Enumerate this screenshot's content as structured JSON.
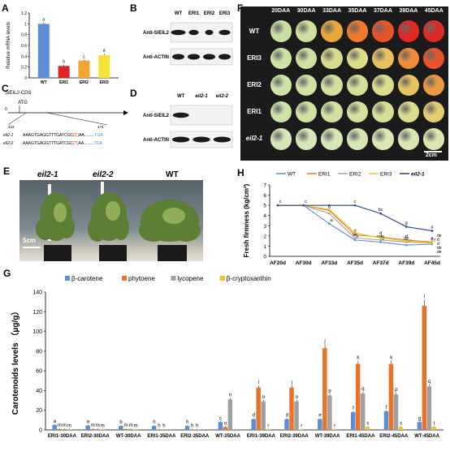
{
  "panels": {
    "A": {
      "letter": "A",
      "ylabel": "Relative mRNA levels",
      "categories": [
        "WT",
        "ERI1",
        "ERI2",
        "ERI3"
      ],
      "values": [
        1.0,
        0.22,
        0.32,
        0.42
      ],
      "errors": [
        0.03,
        0.03,
        0.02,
        0.03
      ],
      "letters": [
        "a",
        "b",
        "c",
        "d"
      ],
      "colors": [
        "#5b8fd6",
        "#e02424",
        "#f2a531",
        "#f5e23a"
      ],
      "yticks": [
        "0",
        "0.2",
        "0.4",
        "0.6",
        "0.8",
        "1",
        "1.2"
      ],
      "ylim": [
        0,
        1.2
      ]
    },
    "B": {
      "letter": "B",
      "lanes": [
        "WT",
        "ERI1",
        "ERI2",
        "ERI3"
      ],
      "row1": "Anti-SlEIL2",
      "row2": "Anti-ACTIN"
    },
    "C": {
      "letter": "C",
      "title": "SlEIL2-CDS",
      "atg": "ATG",
      "zero": "0",
      "pos1": "423",
      "pos2": "474",
      "rows": [
        {
          "name": "eil2-1",
          "seq": "AAAGTGAGGTTTGATCGC",
          "mut": "(C)",
          "tail": "AA.........",
          "stop": "TGA"
        },
        {
          "name": "eil2-2",
          "seq": "AAAGTGAGGTTTGATCGC",
          "mut": "(T)",
          "tail": "AA.........",
          "stop": "TGA"
        }
      ]
    },
    "D": {
      "letter": "D",
      "lanes": [
        "WT",
        "eil2-1",
        "eil2-2"
      ],
      "row1": "Anti-SlEIL2",
      "row2": "Anti-ACTIN"
    },
    "E": {
      "letter": "E",
      "labels": [
        "eil2-1",
        "eil2-2",
        "WT"
      ],
      "scale": "5cm"
    },
    "F": {
      "letter": "F",
      "columns": [
        "20DAA",
        "30DAA",
        "33DAA",
        "35DAA",
        "37DAA",
        "39DAA",
        "45DAA"
      ],
      "rows": [
        "WT",
        "ERI3",
        "ERI2",
        "ERI1",
        "eil2-1"
      ],
      "scale": "2cm",
      "colors": [
        [
          "#c8e0a4",
          "#cfe0a0",
          "#e9a63a",
          "#ec7a2a",
          "#e8542a",
          "#e02a26",
          "#dc2a26"
        ],
        [
          "#cde3a8",
          "#cfe2a4",
          "#d9dc8c",
          "#dcdb88",
          "#e8c260",
          "#ee8c3a",
          "#e8542a"
        ],
        [
          "#cde3a8",
          "#cfe2a4",
          "#d4e0a0",
          "#d6df98",
          "#dcdc8e",
          "#e6c262",
          "#ea9a40"
        ],
        [
          "#cde3a8",
          "#cfe2a4",
          "#d2e0a0",
          "#d4e09c",
          "#d7de96",
          "#dcdc8e",
          "#e4cc70"
        ],
        [
          "#d6e6b8",
          "#d6e6b8",
          "#d8e6b6",
          "#d8e6b6",
          "#dae6b4",
          "#dae6b2",
          "#dce6b0"
        ]
      ]
    },
    "H": {
      "letter": "H",
      "ylabel": "Fresh firmness (kg/cm²)",
      "categories": [
        "AF20d",
        "AF30d",
        "AF33d",
        "AF35d",
        "AF37d",
        "AF39d",
        "AF45d"
      ],
      "yticks": [
        "0",
        "1",
        "2",
        "3",
        "4",
        "5",
        "6",
        "7"
      ],
      "ylim": [
        0,
        7
      ],
      "series": [
        {
          "name": "WT",
          "color": "#5b8fd6",
          "values": [
            5,
            5,
            3.2,
            1.6,
            1.4,
            1.1,
            1.2
          ],
          "letters": [
            "c",
            "c",
            "a",
            "e",
            "a",
            "ef",
            "f"
          ]
        },
        {
          "name": "ERI1",
          "color": "#e8742a",
          "values": [
            5,
            5,
            4.5,
            2.1,
            1.9,
            1.6,
            1.4
          ],
          "letters": [
            "",
            "",
            "b",
            "d",
            "d",
            "d",
            "e"
          ]
        },
        {
          "name": "ERI2",
          "color": "#a0a0a0",
          "values": [
            5,
            5,
            4.2,
            1.8,
            1.6,
            1.4,
            1.3
          ],
          "letters": [
            "",
            "",
            "",
            "de",
            "cde",
            "de",
            "e"
          ]
        },
        {
          "name": "ERI3",
          "color": "#f2c31a",
          "values": [
            5,
            5,
            4.6,
            2.3,
            1.8,
            1.5,
            1.3
          ],
          "letters": [
            "",
            "",
            "",
            "",
            "",
            "",
            ""
          ]
        },
        {
          "name": "eil2-1",
          "color": "#2a3f8f",
          "values": [
            5,
            5,
            5,
            5,
            4.2,
            2.9,
            2.5
          ],
          "letters": [
            "",
            "",
            "",
            "c",
            "bc",
            "g",
            "a"
          ]
        }
      ],
      "extra_letters": [
        "de",
        "d",
        "d",
        "de",
        "de"
      ]
    },
    "G": {
      "letter": "G",
      "ylabel": "Carotenoids levels （μg/g）",
      "yticks": [
        "0",
        "20",
        "40",
        "60",
        "80",
        "100",
        "120",
        "140"
      ],
      "ylim": [
        0,
        140
      ],
      "legend": [
        "β-carotene",
        "phytoene",
        "lycopene",
        "β-cryptoxanthin"
      ],
      "colors": [
        "#5b8fd6",
        "#e8742a",
        "#a0a0a0",
        "#f2c31a"
      ],
      "categories": [
        "ERI1-30DAA",
        "ERI2-30DAA",
        "WT-30DAA",
        "ERI1-35DAA",
        "ERI2-35DAA",
        "WT-35DAA",
        "ERI1-39DAA",
        "ERI2-39DAA",
        "WT-39DAA",
        "ERI1-45DAA",
        "ERI2-45DAA",
        "WT-45DAA"
      ],
      "series": [
        {
          "name": "β-carotene",
          "values": [
            5,
            4.5,
            4,
            4,
            4,
            8,
            11,
            11,
            11,
            18,
            19,
            8
          ]
        },
        {
          "name": "phytoene",
          "values": [
            0.8,
            0.8,
            0.8,
            0.5,
            0.5,
            3,
            43,
            43,
            83,
            67,
            67,
            126
          ]
        },
        {
          "name": "lycopene",
          "values": [
            0.8,
            0.8,
            0.8,
            0.5,
            0.5,
            31,
            29,
            29,
            35,
            37,
            36,
            44
          ]
        },
        {
          "name": "β-cryptoxanthin",
          "values": [
            0.5,
            0.5,
            0.5,
            0.3,
            0.3,
            0.3,
            0.5,
            0.5,
            0.5,
            3,
            3,
            3
          ]
        }
      ],
      "bar_letters": [
        [
          "a",
          "m",
          "m",
          "m"
        ],
        [
          "a",
          "m",
          "m",
          "m"
        ],
        [
          "b",
          "m",
          "m",
          "m"
        ],
        [
          "h",
          "h",
          "h",
          ""
        ],
        [
          "h",
          "h",
          "h",
          ""
        ],
        [
          "c",
          "o",
          "n",
          ""
        ],
        [
          "d",
          "i",
          "o",
          "r"
        ],
        [
          "d",
          "j",
          "o",
          "r"
        ],
        [
          "e",
          "j",
          "p",
          "r"
        ],
        [
          "f",
          "k",
          "q",
          "s"
        ],
        [
          "f",
          "k",
          "p",
          "s"
        ],
        [
          "g",
          "l",
          "q",
          "t"
        ]
      ]
    }
  }
}
